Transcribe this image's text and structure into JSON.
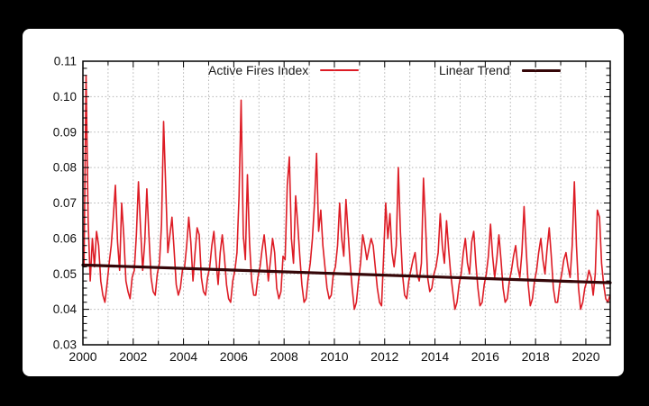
{
  "window": {
    "background_color": "#000000",
    "panel_color": "#ffffff"
  },
  "legend": {
    "fires_label": "Active Fires Index",
    "trend_label": "Linear Trend"
  },
  "chart_data": {
    "type": "line",
    "title": "",
    "xlabel": "",
    "ylabel": "",
    "grid": true,
    "legend_position": "top",
    "xlim": [
      2000,
      2020.97
    ],
    "ylim": [
      0.03,
      0.11
    ],
    "x_tick_labels": [
      "2000",
      "2002",
      "2004",
      "2006",
      "2008",
      "2010",
      "2012",
      "2014",
      "2016",
      "2018",
      "2020"
    ],
    "x_major_ticks": [
      2000,
      2002,
      2004,
      2006,
      2008,
      2010,
      2012,
      2014,
      2016,
      2018,
      2020
    ],
    "x_minor_ticks": [
      2001,
      2003,
      2005,
      2007,
      2009,
      2011,
      2013,
      2015,
      2017,
      2019
    ],
    "x_grid_years": [
      2001,
      2002,
      2003,
      2004,
      2005,
      2006,
      2007,
      2008,
      2009,
      2010,
      2011,
      2012,
      2013,
      2014,
      2015,
      2016,
      2017,
      2018,
      2019,
      2020
    ],
    "y_tick_labels": [
      "0.03",
      "0.04",
      "0.05",
      "0.06",
      "0.07",
      "0.08",
      "0.09",
      "0.10",
      "0.11"
    ],
    "y_major_ticks": [
      0.03,
      0.04,
      0.05,
      0.06,
      0.07,
      0.08,
      0.09,
      0.1,
      0.11
    ],
    "y_minor_step": 0.002,
    "y_grid_values": [
      0.04,
      0.05,
      0.06,
      0.07,
      0.08,
      0.09,
      0.1
    ],
    "colors": {
      "fires_line": "#dd1c25",
      "trend_line": "#350608",
      "grid": "#b3b3b3",
      "axis": "#000000",
      "tick_text": "#111111"
    },
    "series": [
      {
        "name": "Active Fires Index",
        "style": "monthly-line",
        "x_start": 2000.042,
        "x_step_years": 0.0833333,
        "values": [
          0.052,
          0.106,
          0.065,
          0.048,
          0.06,
          0.052,
          0.062,
          0.058,
          0.048,
          0.044,
          0.042,
          0.047,
          0.053,
          0.058,
          0.066,
          0.075,
          0.059,
          0.051,
          0.07,
          0.061,
          0.048,
          0.045,
          0.043,
          0.049,
          0.051,
          0.061,
          0.076,
          0.063,
          0.051,
          0.059,
          0.074,
          0.061,
          0.049,
          0.045,
          0.044,
          0.05,
          0.053,
          0.064,
          0.093,
          0.075,
          0.056,
          0.061,
          0.066,
          0.057,
          0.047,
          0.044,
          0.046,
          0.051,
          0.052,
          0.058,
          0.066,
          0.059,
          0.048,
          0.056,
          0.063,
          0.061,
          0.049,
          0.045,
          0.044,
          0.049,
          0.052,
          0.058,
          0.062,
          0.054,
          0.047,
          0.056,
          0.061,
          0.055,
          0.047,
          0.043,
          0.042,
          0.048,
          0.051,
          0.056,
          0.072,
          0.099,
          0.061,
          0.054,
          0.078,
          0.059,
          0.048,
          0.044,
          0.044,
          0.049,
          0.052,
          0.057,
          0.061,
          0.055,
          0.048,
          0.054,
          0.06,
          0.056,
          0.046,
          0.043,
          0.045,
          0.055,
          0.054,
          0.075,
          0.083,
          0.06,
          0.053,
          0.072,
          0.064,
          0.055,
          0.047,
          0.042,
          0.043,
          0.049,
          0.053,
          0.06,
          0.07,
          0.084,
          0.062,
          0.068,
          0.058,
          0.052,
          0.046,
          0.043,
          0.044,
          0.05,
          0.052,
          0.058,
          0.07,
          0.06,
          0.055,
          0.071,
          0.062,
          0.053,
          0.046,
          0.04,
          0.042,
          0.048,
          0.053,
          0.061,
          0.058,
          0.054,
          0.057,
          0.06,
          0.058,
          0.052,
          0.046,
          0.042,
          0.041,
          0.055,
          0.07,
          0.06,
          0.067,
          0.056,
          0.052,
          0.058,
          0.08,
          0.062,
          0.05,
          0.044,
          0.043,
          0.048,
          0.051,
          0.054,
          0.056,
          0.05,
          0.048,
          0.053,
          0.077,
          0.064,
          0.049,
          0.045,
          0.046,
          0.05,
          0.052,
          0.056,
          0.067,
          0.058,
          0.053,
          0.065,
          0.057,
          0.05,
          0.045,
          0.04,
          0.042,
          0.047,
          0.05,
          0.056,
          0.06,
          0.053,
          0.05,
          0.059,
          0.062,
          0.053,
          0.046,
          0.041,
          0.042,
          0.047,
          0.05,
          0.055,
          0.064,
          0.055,
          0.049,
          0.054,
          0.061,
          0.054,
          0.046,
          0.042,
          0.043,
          0.048,
          0.051,
          0.055,
          0.058,
          0.052,
          0.049,
          0.056,
          0.069,
          0.057,
          0.047,
          0.041,
          0.043,
          0.048,
          0.051,
          0.056,
          0.06,
          0.054,
          0.05,
          0.057,
          0.063,
          0.055,
          0.046,
          0.042,
          0.042,
          0.047,
          0.05,
          0.054,
          0.056,
          0.052,
          0.049,
          0.058,
          0.076,
          0.058,
          0.046,
          0.04,
          0.042,
          0.046,
          0.048,
          0.051,
          0.049,
          0.044,
          0.05,
          0.068,
          0.066,
          0.053,
          0.047,
          0.043,
          0.042,
          0.044
        ]
      },
      {
        "name": "Linear Trend",
        "style": "trend-line",
        "points": [
          [
            2000.0,
            0.0525
          ],
          [
            2020.97,
            0.0475
          ]
        ]
      }
    ]
  }
}
